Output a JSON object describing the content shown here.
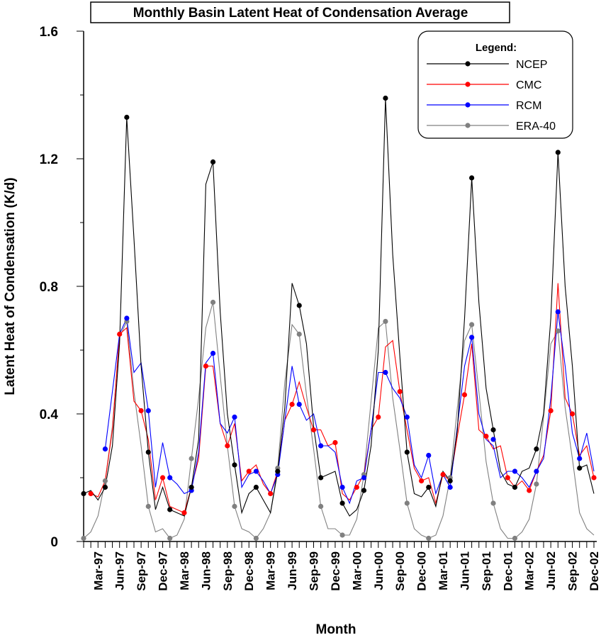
{
  "chart_data": {
    "type": "line",
    "title": "Monthly Basin Latent Heat of Condensation Average",
    "xlabel": "Month",
    "ylabel": "Latent Heat of Condensation (K/d)",
    "ylim": [
      0,
      1.6
    ],
    "yticks": [
      "0",
      "0.4",
      "0.8",
      "1.2",
      "1.6"
    ],
    "grid": false,
    "legend_title": "Legend:",
    "legend_position": "top-right",
    "start_month": "Jan-97",
    "months_count": 72,
    "xtick_labels": [
      "Mar-97",
      "Jun-97",
      "Sep-97",
      "Dec-97",
      "Mar-98",
      "Jun-98",
      "Sep-98",
      "Dec-98",
      "Mar-99",
      "Jun-99",
      "Sep-99",
      "Dec-99",
      "Mar-00",
      "Jun-00",
      "Sep-00",
      "Dec-00",
      "Mar-01",
      "Jun-01",
      "Sep-01",
      "Dec-01",
      "Mar-02",
      "Jun-02",
      "Sep-02",
      "Dec-02"
    ],
    "series": [
      {
        "name": "NCEP",
        "color": "#000000",
        "values": [
          0.15,
          0.16,
          0.13,
          0.17,
          0.3,
          0.62,
          1.33,
          0.95,
          0.55,
          0.28,
          0.1,
          0.17,
          0.1,
          0.09,
          0.08,
          0.17,
          0.32,
          1.12,
          1.19,
          0.72,
          0.4,
          0.24,
          0.09,
          0.15,
          0.17,
          0.13,
          0.09,
          0.22,
          0.42,
          0.81,
          0.74,
          0.62,
          0.36,
          0.2,
          0.21,
          0.22,
          0.12,
          0.08,
          0.1,
          0.16,
          0.3,
          0.6,
          1.39,
          0.9,
          0.58,
          0.28,
          0.15,
          0.14,
          0.17,
          0.11,
          0.22,
          0.19,
          0.35,
          0.7,
          1.14,
          0.75,
          0.48,
          0.35,
          0.22,
          0.18,
          0.17,
          0.22,
          0.23,
          0.29,
          0.4,
          0.7,
          1.22,
          0.8,
          0.55,
          0.23,
          0.24,
          0.15
        ]
      },
      {
        "name": "CMC",
        "color": "#ff0000",
        "values": [
          null,
          0.15,
          0.14,
          0.19,
          0.35,
          0.65,
          0.67,
          0.44,
          0.41,
          0.32,
          0.13,
          0.2,
          0.11,
          0.1,
          0.09,
          0.17,
          0.26,
          0.55,
          0.55,
          0.37,
          0.3,
          0.37,
          0.19,
          0.22,
          0.24,
          0.18,
          0.15,
          0.22,
          0.38,
          0.43,
          0.5,
          0.42,
          0.35,
          0.35,
          0.3,
          0.31,
          0.15,
          0.13,
          0.17,
          0.21,
          0.35,
          0.39,
          0.61,
          0.63,
          0.47,
          0.35,
          0.23,
          0.19,
          0.2,
          0.12,
          0.21,
          0.19,
          0.33,
          0.46,
          0.62,
          0.35,
          0.33,
          0.29,
          0.3,
          0.2,
          0.17,
          0.19,
          0.16,
          0.22,
          0.27,
          0.41,
          0.81,
          0.45,
          0.4,
          0.27,
          0.3,
          0.2
        ]
      },
      {
        "name": "RCM",
        "color": "#0000ff",
        "values": [
          null,
          null,
          null,
          0.29,
          0.47,
          0.65,
          0.7,
          0.53,
          0.56,
          0.41,
          0.17,
          0.31,
          0.2,
          0.18,
          0.15,
          0.16,
          0.28,
          0.56,
          0.59,
          0.37,
          0.34,
          0.39,
          0.17,
          0.21,
          0.22,
          0.19,
          0.15,
          0.21,
          0.38,
          0.55,
          0.43,
          0.38,
          0.4,
          0.3,
          0.3,
          0.28,
          0.17,
          0.12,
          0.19,
          0.2,
          0.35,
          0.53,
          0.53,
          0.48,
          0.45,
          0.39,
          0.24,
          0.2,
          0.27,
          0.15,
          0.21,
          0.17,
          0.36,
          0.55,
          0.64,
          0.4,
          0.32,
          0.3,
          0.2,
          0.22,
          0.22,
          0.2,
          0.17,
          0.22,
          0.26,
          0.45,
          0.72,
          0.55,
          0.34,
          0.26,
          0.34,
          0.22
        ]
      },
      {
        "name": "ERA-40",
        "color": "#808080",
        "values": [
          0.01,
          0.03,
          0.08,
          0.19,
          0.36,
          0.64,
          0.69,
          0.47,
          0.3,
          0.11,
          0.03,
          0.04,
          0.01,
          0.02,
          0.07,
          0.26,
          0.45,
          0.67,
          0.75,
          0.52,
          0.3,
          0.11,
          0.04,
          0.03,
          0.01,
          0.04,
          0.09,
          0.23,
          0.5,
          0.68,
          0.65,
          0.46,
          0.29,
          0.11,
          0.04,
          0.04,
          0.02,
          0.02,
          0.07,
          0.21,
          0.44,
          0.67,
          0.69,
          0.45,
          0.29,
          0.12,
          0.04,
          0.02,
          0.01,
          0.02,
          0.08,
          0.2,
          0.42,
          0.63,
          0.68,
          0.47,
          0.25,
          0.12,
          0.04,
          0.01,
          0.01,
          0.03,
          0.07,
          0.18,
          0.39,
          0.62,
          0.66,
          0.42,
          0.26,
          0.09,
          0.04,
          0.02
        ]
      }
    ],
    "markers": {
      "NCEP": [
        [
          0,
          0.15
        ],
        [
          3,
          0.17
        ],
        [
          6,
          1.33
        ],
        [
          9,
          0.28
        ],
        [
          12,
          0.1
        ],
        [
          15,
          0.17
        ],
        [
          18,
          1.19
        ],
        [
          21,
          0.24
        ],
        [
          24,
          0.17
        ],
        [
          27,
          0.22
        ],
        [
          30,
          0.74
        ],
        [
          33,
          0.2
        ],
        [
          36,
          0.12
        ],
        [
          39,
          0.16
        ],
        [
          42,
          1.39
        ],
        [
          45,
          0.28
        ],
        [
          48,
          0.17
        ],
        [
          51,
          0.19
        ],
        [
          54,
          1.14
        ],
        [
          57,
          0.35
        ],
        [
          60,
          0.17
        ],
        [
          63,
          0.29
        ],
        [
          66,
          1.22
        ],
        [
          69,
          0.23
        ]
      ],
      "CMC": [
        [
          1,
          0.15
        ],
        [
          5,
          0.65
        ],
        [
          8,
          0.41
        ],
        [
          11,
          0.2
        ],
        [
          14,
          0.09
        ],
        [
          17,
          0.55
        ],
        [
          20,
          0.3
        ],
        [
          23,
          0.22
        ],
        [
          26,
          0.15
        ],
        [
          29,
          0.43
        ],
        [
          32,
          0.35
        ],
        [
          35,
          0.31
        ],
        [
          38,
          0.17
        ],
        [
          41,
          0.39
        ],
        [
          44,
          0.47
        ],
        [
          47,
          0.19
        ],
        [
          50,
          0.21
        ],
        [
          53,
          0.46
        ],
        [
          56,
          0.33
        ],
        [
          59,
          0.2
        ],
        [
          62,
          0.16
        ],
        [
          65,
          0.41
        ],
        [
          68,
          0.4
        ],
        [
          71,
          0.2
        ]
      ],
      "RCM": [
        [
          3,
          0.29
        ],
        [
          6,
          0.7
        ],
        [
          9,
          0.41
        ],
        [
          12,
          0.2
        ],
        [
          15,
          0.16
        ],
        [
          18,
          0.59
        ],
        [
          21,
          0.39
        ],
        [
          24,
          0.22
        ],
        [
          27,
          0.21
        ],
        [
          30,
          0.43
        ],
        [
          33,
          0.3
        ],
        [
          36,
          0.17
        ],
        [
          39,
          0.2
        ],
        [
          42,
          0.53
        ],
        [
          45,
          0.39
        ],
        [
          48,
          0.27
        ],
        [
          51,
          0.17
        ],
        [
          54,
          0.64
        ],
        [
          57,
          0.32
        ],
        [
          60,
          0.22
        ],
        [
          63,
          0.22
        ],
        [
          66,
          0.72
        ],
        [
          69,
          0.26
        ]
      ],
      "ERA-40": [
        [
          0,
          0.01
        ],
        [
          3,
          0.19
        ],
        [
          6,
          0.69
        ],
        [
          9,
          0.11
        ],
        [
          12,
          0.01
        ],
        [
          15,
          0.26
        ],
        [
          18,
          0.75
        ],
        [
          21,
          0.11
        ],
        [
          24,
          0.01
        ],
        [
          27,
          0.23
        ],
        [
          30,
          0.65
        ],
        [
          33,
          0.11
        ],
        [
          36,
          0.02
        ],
        [
          39,
          0.21
        ],
        [
          42,
          0.69
        ],
        [
          45,
          0.12
        ],
        [
          48,
          0.01
        ],
        [
          51,
          0.2
        ],
        [
          54,
          0.68
        ],
        [
          57,
          0.12
        ],
        [
          60,
          0.01
        ],
        [
          63,
          0.18
        ],
        [
          66,
          0.66
        ]
      ]
    }
  }
}
